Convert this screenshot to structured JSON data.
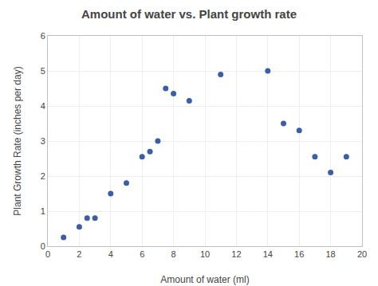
{
  "chart_data": {
    "type": "scatter",
    "title": "Amount of water vs. Plant growth rate",
    "xlabel": "Amount of water (ml)",
    "ylabel": "Plant Growth Rate (inches per day)",
    "x": [
      1,
      2,
      2.5,
      3,
      4,
      5,
      6,
      6.5,
      7,
      7.5,
      8,
      9,
      11,
      14,
      15,
      16,
      17,
      18,
      19
    ],
    "y": [
      0.25,
      0.55,
      0.8,
      0.8,
      1.5,
      1.8,
      2.55,
      2.7,
      3.0,
      4.5,
      4.35,
      4.15,
      4.9,
      5.0,
      3.5,
      3.3,
      2.55,
      2.1,
      2.55
    ],
    "xlim": [
      0,
      20
    ],
    "ylim": [
      0,
      6
    ],
    "xticks": [
      0,
      2,
      4,
      6,
      8,
      10,
      12,
      14,
      16,
      18,
      20
    ],
    "yticks": [
      0,
      1,
      2,
      3,
      4,
      5,
      6
    ],
    "color": "#3B5EA6",
    "grid": true
  }
}
